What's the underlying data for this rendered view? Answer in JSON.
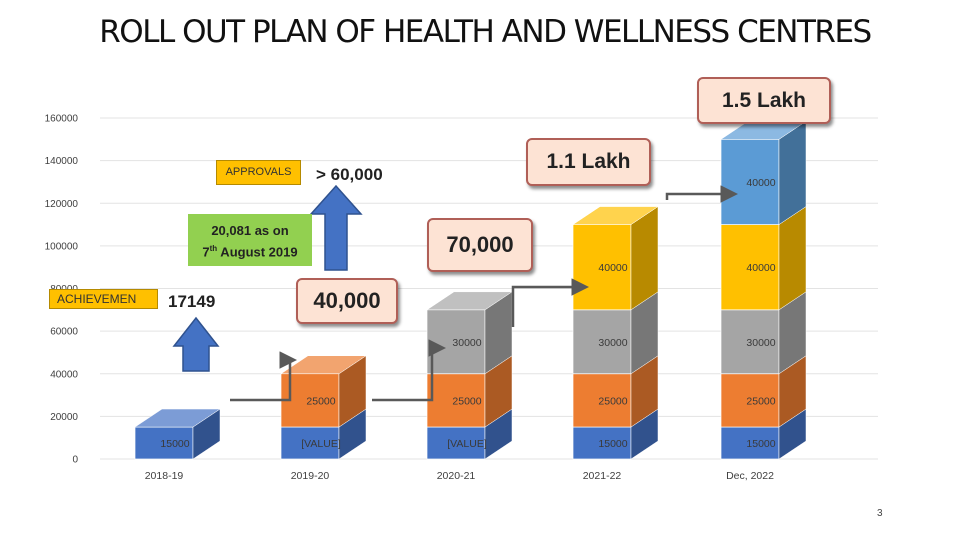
{
  "slide": {
    "title": "ROLL OUT PLAN OF HEALTH AND WELLNESS CENTRES",
    "page_number": "3",
    "callouts": {
      "target_final": "1.5 Lakh",
      "target_2021": "1.1 Lakh",
      "target_2020": "70,000",
      "target_2019": "40,000",
      "approvals_label": "APPROVALS",
      "approvals_value": "> 60,000",
      "achievement_label": "ACHIEVEMEN",
      "achievement_value": "17149",
      "achievement_note_line1": "20,081 as on",
      "achievement_note_day": "7",
      "achievement_note_sup": "th",
      "achievement_note_rest": " August 2019"
    }
  },
  "chart_data": {
    "type": "bar",
    "stacked": true,
    "categories": [
      "2018-19",
      "2019-20",
      "2020-21",
      "2021-22",
      "Dec, 2022"
    ],
    "ylim": [
      0,
      160000
    ],
    "yticks": [
      0,
      20000,
      40000,
      60000,
      80000,
      100000,
      120000,
      140000,
      160000
    ],
    "ytick_labels": [
      "0",
      "20000",
      "40000",
      "60000",
      "80000",
      "100000",
      "120000",
      "140000",
      "160000"
    ],
    "grid": true,
    "series": [
      {
        "values": [
          15000,
          15000,
          15000,
          15000,
          15000
        ],
        "labels": [
          "15000",
          "[VALUE]",
          "[VALUE]",
          "15000",
          "15000"
        ],
        "color": "#4472c4"
      },
      {
        "values": [
          0,
          25000,
          25000,
          25000,
          25000
        ],
        "labels": [
          "",
          "25000",
          "25000",
          "25000",
          "25000"
        ],
        "color": "#ed7d31"
      },
      {
        "values": [
          0,
          0,
          30000,
          30000,
          30000
        ],
        "labels": [
          "",
          "",
          "30000",
          "30000",
          "30000"
        ],
        "color": "#a5a5a5"
      },
      {
        "values": [
          0,
          0,
          0,
          40000,
          40000
        ],
        "labels": [
          "",
          "",
          "",
          "40000",
          "40000"
        ],
        "color": "#ffc000"
      },
      {
        "values": [
          0,
          0,
          0,
          0,
          40000
        ],
        "labels": [
          "",
          "",
          "",
          "",
          "40000"
        ],
        "color": "#5b9bd5"
      }
    ]
  }
}
